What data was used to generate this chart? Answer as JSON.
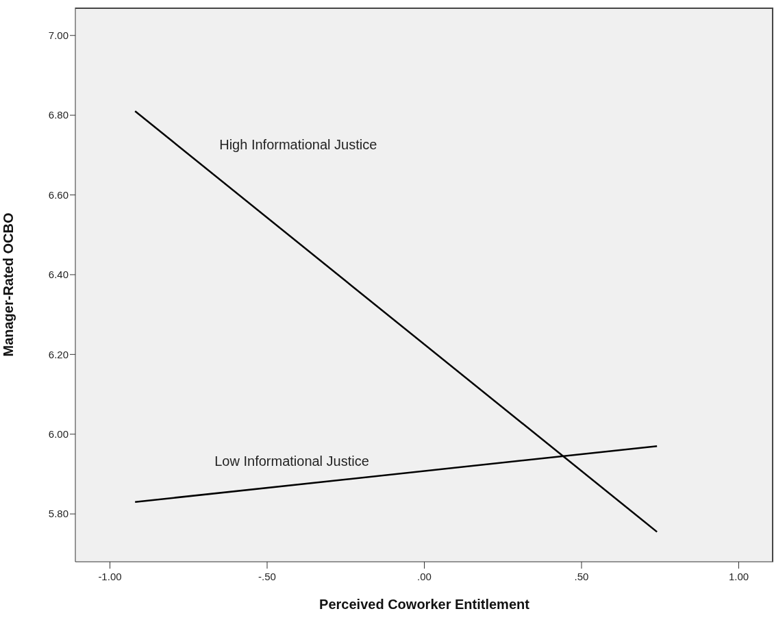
{
  "chart_data": {
    "type": "line",
    "xlabel": "Perceived Coworker Entitlement",
    "ylabel": "Manager-Rated OCBO",
    "x": [
      -0.92,
      0.74
    ],
    "series": [
      {
        "name": "High Informational Justice",
        "color": "#000000",
        "values": [
          6.81,
          5.755
        ]
      },
      {
        "name": "Low Informational Justice",
        "color": "#000000",
        "values": [
          5.83,
          5.97
        ]
      }
    ],
    "xlim": [
      -1.11,
      1.11
    ],
    "xticks": [
      {
        "value": -1,
        "label": "-1.00"
      },
      {
        "value": -0.5,
        "label": "-.50"
      },
      {
        "value": 0,
        "label": ".00"
      },
      {
        "value": 0.5,
        "label": ".50"
      },
      {
        "value": 1,
        "label": "1.00"
      }
    ],
    "ylim": [
      5.68,
      7.07
    ],
    "yticks": [
      {
        "value": 5.8,
        "label": "5.80"
      },
      {
        "value": 6,
        "label": "6.00"
      },
      {
        "value": 6.2,
        "label": "6.20"
      },
      {
        "value": 6.4,
        "label": "6.40"
      },
      {
        "value": 6.6,
        "label": "6.60"
      },
      {
        "value": 6.8,
        "label": "6.80"
      },
      {
        "value": 7,
        "label": "7.00"
      }
    ],
    "grid": false,
    "legend": false,
    "marker": "none",
    "line_style": "solid"
  }
}
